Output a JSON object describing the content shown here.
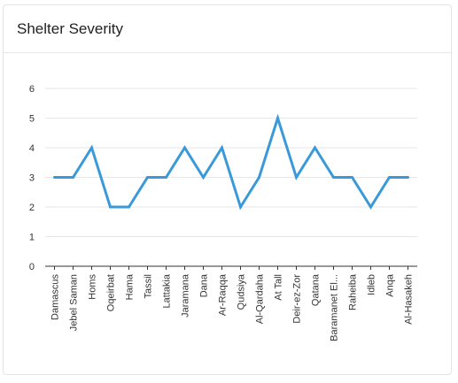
{
  "card": {
    "title": "Shelter Severity"
  },
  "chart_data": {
    "type": "line",
    "categories": [
      "Damascus",
      "Jebel Saman",
      "Homs",
      "Oqeirbat",
      "Hama",
      "Tassil",
      "Lattakia",
      "Jaramana",
      "Dana",
      "Ar-Raqqa",
      "Qudsiya",
      "Al-Qardaha",
      "At Tall",
      "Deir-ez-Zor",
      "Qatana",
      "Baramanet El...",
      "Raheiba",
      "Idleb",
      "Anqa",
      "Al-Hasakeh"
    ],
    "values": [
      3,
      3,
      4,
      2,
      2,
      3,
      3,
      4,
      3,
      4,
      2,
      3,
      5,
      3,
      4,
      3,
      3,
      2,
      3,
      3
    ],
    "ylim": [
      0,
      6
    ],
    "yticks": [
      "0",
      "1",
      "2",
      "3",
      "4",
      "5",
      "6"
    ],
    "grid": true,
    "line_color": "#3a9ad9",
    "grid_color": "#e6e6e6",
    "axis_color": "#333333"
  }
}
